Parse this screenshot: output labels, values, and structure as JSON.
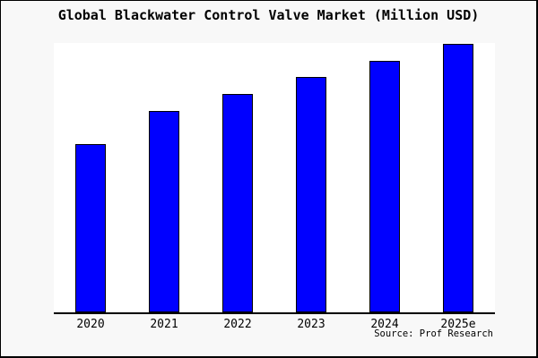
{
  "window": {
    "background_color": "#f8f8f8",
    "border_color": "#000000",
    "plot_background_color": "#ffffff"
  },
  "title": "Global Blackwater Control Valve Market (Million USD)",
  "source": "Source: Prof Research",
  "chart_data": {
    "type": "bar",
    "title": "Global Blackwater Control Valve Market (Million USD)",
    "categories": [
      "2020",
      "2021",
      "2022",
      "2023",
      "2024",
      "2025e"
    ],
    "values": [
      188,
      225,
      244,
      263,
      281,
      300
    ],
    "values_note": "y-axis has no tick labels; values are relative bar heights read from the plot (plot height = 301)",
    "ylim": [
      0,
      301
    ],
    "xlabel": "",
    "ylabel": "",
    "grid": false,
    "legend": false,
    "y_axis_labels_shown": false,
    "bar_color": "#0000ff",
    "bar_border_color": "#000000",
    "annotation": "Source: Prof Research"
  }
}
